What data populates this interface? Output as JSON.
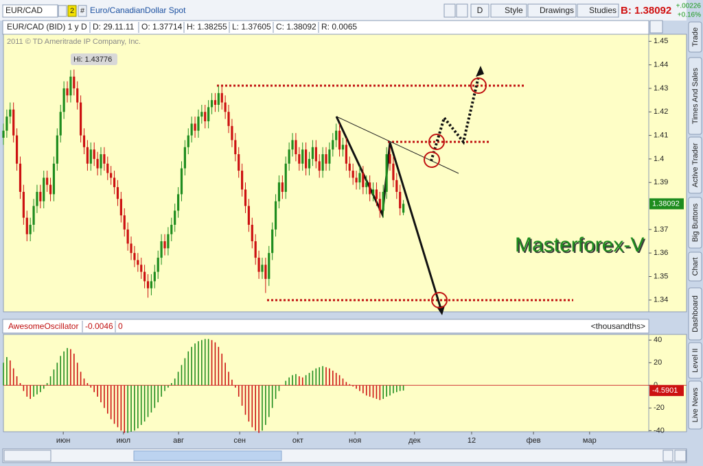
{
  "toolbar": {
    "symbol": "EUR/CAD",
    "link": "2",
    "hash": "#",
    "description": "Euro/CanadianDollar Spot",
    "period": "D",
    "style": "Style",
    "drawings": "Drawings",
    "studies": "Studies",
    "bid": "B: 1.38092",
    "change": "+.00226",
    "change_pct": "+0.16%"
  },
  "info_bar": [
    "EUR/CAD (BID) 1 y D",
    "D: 29.11.11",
    "O: 1.37714",
    "H: 1.38255",
    "L: 1.37605",
    "C: 1.38092",
    "R: 0.0065"
  ],
  "tabs": [
    "Trade",
    "Times And Sales",
    "Active Trader",
    "Big Buttons",
    "Chart",
    "Dashboard",
    "Level II",
    "Live News"
  ],
  "chart_data": [
    {
      "type": "candlestick",
      "copyright": "2011 © TD Ameritrade IP Company, Inc.",
      "hi_label": "Hi: 1.43776",
      "watermark": "Masterforex-V",
      "up_color": "#1e8c1e",
      "down_color": "#cc1111",
      "xlim": [
        0,
        192
      ],
      "ylim": [
        1.335,
        1.453
      ],
      "xticks": [
        {
          "value": 17.8,
          "label": "июн"
        },
        {
          "value": 35.7,
          "label": "июл"
        },
        {
          "value": 52.1,
          "label": "авг"
        },
        {
          "value": 70.3,
          "label": "сен"
        },
        {
          "value": 87.6,
          "label": "окт"
        },
        {
          "value": 104.6,
          "label": "ноя"
        },
        {
          "value": 122.3,
          "label": "дек"
        },
        {
          "value": 139.3,
          "label": "12"
        },
        {
          "value": 157.7,
          "label": "фев"
        },
        {
          "value": 174.4,
          "label": "мар"
        }
      ],
      "yticks": [
        1.45,
        1.44,
        1.43,
        1.42,
        1.41,
        1.4,
        1.39,
        1.37,
        1.36,
        1.35,
        1.34
      ],
      "candles": [
        [
          1.409,
          1.415,
          1.406,
          1.412
        ],
        [
          1.412,
          1.421,
          1.409,
          1.418
        ],
        [
          1.418,
          1.424,
          1.415,
          1.421
        ],
        [
          1.421,
          1.424,
          1.407,
          1.41
        ],
        [
          1.41,
          1.413,
          1.395,
          1.398
        ],
        [
          1.398,
          1.401,
          1.383,
          1.386
        ],
        [
          1.386,
          1.389,
          1.372,
          1.375
        ],
        [
          1.375,
          1.378,
          1.365,
          1.368
        ],
        [
          1.368,
          1.375,
          1.365,
          1.372
        ],
        [
          1.372,
          1.383,
          1.369,
          1.38
        ],
        [
          1.38,
          1.389,
          1.377,
          1.386
        ],
        [
          1.386,
          1.389,
          1.379,
          1.382
        ],
        [
          1.382,
          1.395,
          1.379,
          1.392
        ],
        [
          1.392,
          1.395,
          1.386,
          1.389
        ],
        [
          1.389,
          1.392,
          1.382,
          1.385
        ],
        [
          1.385,
          1.401,
          1.382,
          1.398
        ],
        [
          1.398,
          1.413,
          1.395,
          1.41
        ],
        [
          1.41,
          1.423,
          1.407,
          1.42
        ],
        [
          1.42,
          1.433,
          1.417,
          1.43
        ],
        [
          1.43,
          1.433,
          1.424,
          1.427
        ],
        [
          1.427,
          1.43776,
          1.424,
          1.435
        ],
        [
          1.435,
          1.438,
          1.427,
          1.43
        ],
        [
          1.43,
          1.433,
          1.421,
          1.424
        ],
        [
          1.424,
          1.427,
          1.407,
          1.41
        ],
        [
          1.41,
          1.413,
          1.402,
          1.405
        ],
        [
          1.405,
          1.408,
          1.395,
          1.398
        ],
        [
          1.398,
          1.407,
          1.395,
          1.404
        ],
        [
          1.404,
          1.407,
          1.397,
          1.4
        ],
        [
          1.4,
          1.403,
          1.393,
          1.396
        ],
        [
          1.396,
          1.405,
          1.393,
          1.402
        ],
        [
          1.402,
          1.405,
          1.395,
          1.398
        ],
        [
          1.398,
          1.401,
          1.391,
          1.394
        ],
        [
          1.394,
          1.397,
          1.389,
          1.392
        ],
        [
          1.392,
          1.395,
          1.385,
          1.388
        ],
        [
          1.388,
          1.391,
          1.38,
          1.383
        ],
        [
          1.383,
          1.386,
          1.373,
          1.376
        ],
        [
          1.376,
          1.379,
          1.367,
          1.37
        ],
        [
          1.37,
          1.373,
          1.361,
          1.364
        ],
        [
          1.364,
          1.367,
          1.357,
          1.36
        ],
        [
          1.36,
          1.363,
          1.354,
          1.357
        ],
        [
          1.357,
          1.36,
          1.352,
          1.355
        ],
        [
          1.355,
          1.358,
          1.349,
          1.352
        ],
        [
          1.352,
          1.355,
          1.345,
          1.348
        ],
        [
          1.348,
          1.351,
          1.341,
          1.345
        ],
        [
          1.345,
          1.351,
          1.342,
          1.348
        ],
        [
          1.348,
          1.355,
          1.345,
          1.352
        ],
        [
          1.352,
          1.361,
          1.349,
          1.358
        ],
        [
          1.358,
          1.368,
          1.355,
          1.365
        ],
        [
          1.365,
          1.368,
          1.359,
          1.362
        ],
        [
          1.362,
          1.371,
          1.359,
          1.368
        ],
        [
          1.368,
          1.375,
          1.365,
          1.372
        ],
        [
          1.372,
          1.381,
          1.369,
          1.378
        ],
        [
          1.378,
          1.388,
          1.375,
          1.385
        ],
        [
          1.385,
          1.399,
          1.382,
          1.396
        ],
        [
          1.396,
          1.408,
          1.393,
          1.405
        ],
        [
          1.405,
          1.413,
          1.402,
          1.41
        ],
        [
          1.41,
          1.418,
          1.407,
          1.415
        ],
        [
          1.415,
          1.418,
          1.409,
          1.412
        ],
        [
          1.412,
          1.421,
          1.409,
          1.418
        ],
        [
          1.418,
          1.423,
          1.415,
          1.42
        ],
        [
          1.42,
          1.423,
          1.413,
          1.416
        ],
        [
          1.416,
          1.425,
          1.413,
          1.422
        ],
        [
          1.422,
          1.428,
          1.419,
          1.425
        ],
        [
          1.425,
          1.428,
          1.42,
          1.423
        ],
        [
          1.423,
          1.431,
          1.42,
          1.428
        ],
        [
          1.428,
          1.431,
          1.421,
          1.424
        ],
        [
          1.424,
          1.427,
          1.417,
          1.42
        ],
        [
          1.42,
          1.423,
          1.411,
          1.414
        ],
        [
          1.414,
          1.417,
          1.405,
          1.408
        ],
        [
          1.408,
          1.411,
          1.399,
          1.402
        ],
        [
          1.402,
          1.405,
          1.392,
          1.395
        ],
        [
          1.395,
          1.398,
          1.384,
          1.387
        ],
        [
          1.387,
          1.39,
          1.377,
          1.38
        ],
        [
          1.38,
          1.383,
          1.369,
          1.372
        ],
        [
          1.372,
          1.375,
          1.362,
          1.365
        ],
        [
          1.365,
          1.368,
          1.355,
          1.358
        ],
        [
          1.358,
          1.361,
          1.349,
          1.352
        ],
        [
          1.352,
          1.358,
          1.349,
          1.355
        ],
        [
          1.355,
          1.358,
          1.343,
          1.349
        ],
        [
          1.349,
          1.363,
          1.346,
          1.36
        ],
        [
          1.36,
          1.373,
          1.357,
          1.37
        ],
        [
          1.37,
          1.385,
          1.367,
          1.382
        ],
        [
          1.382,
          1.393,
          1.379,
          1.39
        ],
        [
          1.39,
          1.393,
          1.383,
          1.386
        ],
        [
          1.386,
          1.401,
          1.383,
          1.398
        ],
        [
          1.398,
          1.407,
          1.395,
          1.404
        ],
        [
          1.404,
          1.411,
          1.401,
          1.408
        ],
        [
          1.408,
          1.411,
          1.399,
          1.402
        ],
        [
          1.402,
          1.405,
          1.395,
          1.398
        ],
        [
          1.398,
          1.407,
          1.395,
          1.404
        ],
        [
          1.404,
          1.407,
          1.393,
          1.396
        ],
        [
          1.396,
          1.403,
          1.393,
          1.4
        ],
        [
          1.4,
          1.408,
          1.397,
          1.405
        ],
        [
          1.405,
          1.408,
          1.396,
          1.399
        ],
        [
          1.399,
          1.402,
          1.392,
          1.395
        ],
        [
          1.395,
          1.405,
          1.392,
          1.402
        ],
        [
          1.402,
          1.405,
          1.395,
          1.398
        ],
        [
          1.398,
          1.407,
          1.395,
          1.404
        ],
        [
          1.404,
          1.411,
          1.401,
          1.408
        ],
        [
          1.408,
          1.415,
          1.405,
          1.412
        ],
        [
          1.412,
          1.415,
          1.401,
          1.404
        ],
        [
          1.404,
          1.409,
          1.401,
          1.406
        ],
        [
          1.406,
          1.409,
          1.395,
          1.398
        ],
        [
          1.398,
          1.401,
          1.392,
          1.395
        ],
        [
          1.395,
          1.398,
          1.389,
          1.392
        ],
        [
          1.392,
          1.395,
          1.387,
          1.39
        ],
        [
          1.39,
          1.397,
          1.387,
          1.394
        ],
        [
          1.394,
          1.397,
          1.385,
          1.388
        ],
        [
          1.388,
          1.393,
          1.385,
          1.39
        ],
        [
          1.39,
          1.393,
          1.382,
          1.385
        ],
        [
          1.385,
          1.39,
          1.382,
          1.387
        ],
        [
          1.387,
          1.39,
          1.38,
          1.383
        ],
        [
          1.383,
          1.386,
          1.375,
          1.378
        ],
        [
          1.378,
          1.389,
          1.375,
          1.386
        ],
        [
          1.386,
          1.405,
          1.383,
          1.402
        ],
        [
          1.402,
          1.405,
          1.395,
          1.398
        ],
        [
          1.398,
          1.401,
          1.388,
          1.391
        ],
        [
          1.391,
          1.394,
          1.383,
          1.386
        ],
        [
          1.386,
          1.389,
          1.376,
          1.379
        ],
        [
          1.37714,
          1.38255,
          1.37605,
          1.38092
        ]
      ]
    },
    {
      "type": "bar",
      "study_name": "AwesomeOscillator",
      "study_value": "-0.0046",
      "study_value2": "0",
      "units": "<thousandths>",
      "up_color": "#1e8c1e",
      "down_color": "#cc1111",
      "ylim": [
        -41,
        45
      ],
      "yticks": [
        40,
        20,
        0,
        -20,
        -40
      ],
      "values": [
        20,
        25,
        22,
        15,
        8,
        2,
        -5,
        -10,
        -12,
        -10,
        -8,
        -6,
        -3,
        2,
        8,
        14,
        20,
        26,
        30,
        33,
        32,
        28,
        20,
        12,
        6,
        2,
        -2,
        -6,
        -10,
        -15,
        -20,
        -25,
        -30,
        -34,
        -37,
        -40,
        -42,
        -42,
        -41,
        -40,
        -38,
        -35,
        -32,
        -28,
        -24,
        -20,
        -15,
        -10,
        -5,
        -2,
        2,
        6,
        12,
        18,
        24,
        30,
        34,
        37,
        39,
        40,
        41,
        41,
        40,
        38,
        34,
        28,
        20,
        12,
        5,
        -2,
        -10,
        -18,
        -26,
        -32,
        -37,
        -40,
        -42,
        -40,
        -35,
        -28,
        -20,
        -12,
        -5,
        0,
        4,
        7,
        9,
        10,
        8,
        7,
        9,
        11,
        13,
        15,
        16,
        17,
        16,
        15,
        13,
        11,
        9,
        6,
        3,
        1,
        -1,
        -3,
        -5,
        -7,
        -9,
        -10,
        -11,
        -12,
        -13,
        -12,
        -10,
        -9,
        -7,
        -6,
        -5,
        -4.5901
      ]
    }
  ]
}
